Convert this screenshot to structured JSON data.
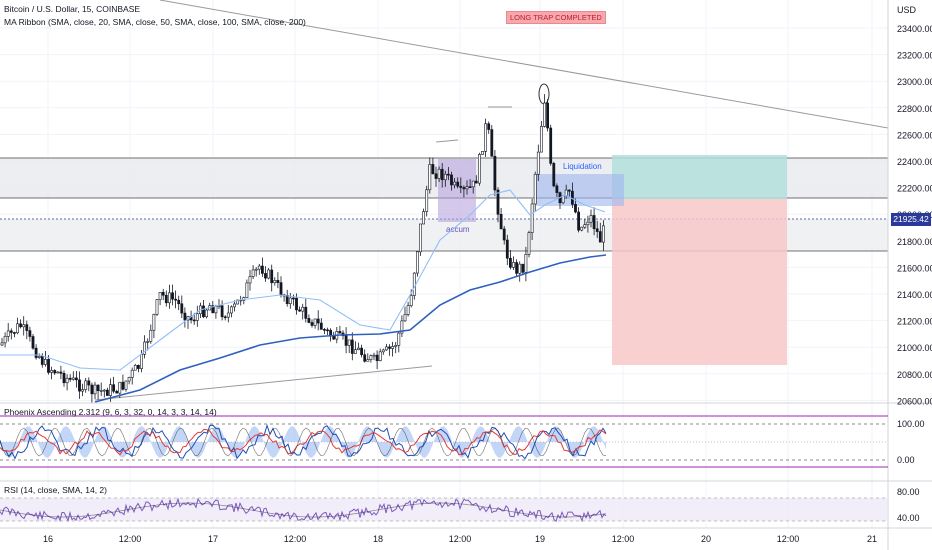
{
  "header": {
    "symbol_line": "Bitcoin / U.S. Dollar, 15, COINBASE",
    "ma_ribbon": "MA Ribbon (SMA, close, 20, SMA, close, 50, SMA, close, 100, SMA, close, 200)"
  },
  "price_axis": {
    "unit": "USD",
    "ticks": [
      "23400.00",
      "23200.00",
      "23000.00",
      "22800.00",
      "22600.00",
      "22400.00",
      "22200.00",
      "22000.00",
      "21800.00",
      "21600.00",
      "21400.00",
      "21200.00",
      "21000.00",
      "20800.00",
      "20600.00"
    ],
    "current_price": "21925.42"
  },
  "annotations": {
    "long_trap": "LONG TRAP COMPLETED",
    "liquidation": "Liquidation",
    "accum": "accum"
  },
  "phoenix": {
    "title": "Phoenix Ascending 2.312 (9, 6, 3, 32, 0, 14, 3, 3, 14, 14)",
    "ticks": [
      "100.00",
      "0.00"
    ]
  },
  "rsi": {
    "title": "RSI (14, close, SMA, 14, 2)",
    "ticks": [
      "80.00",
      "40.00"
    ]
  },
  "time_axis": {
    "ticks": [
      "16",
      "12:00",
      "17",
      "12:00",
      "18",
      "12:00",
      "19",
      "12:00",
      "20",
      "12:00",
      "21"
    ]
  },
  "colors": {
    "up_candle": "#ffffff",
    "down_candle": "#131722",
    "ma_fast": "#90bff9",
    "ma_slow": "#2f5fbf",
    "rsi_line": "#7e57c2",
    "price_tag": "#2a3a9a",
    "tp_zone": "#b2dfdb",
    "sl_zone": "#f8c8c8"
  }
}
